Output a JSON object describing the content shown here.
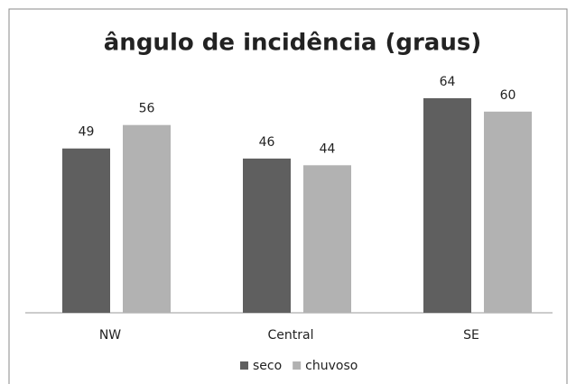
{
  "chart_data": {
    "type": "bar",
    "title": "ângulo de incidência (graus)",
    "categories": [
      "NW",
      "Central",
      "SE"
    ],
    "series": [
      {
        "name": "seco",
        "color": "#5f5f5f",
        "values": [
          49,
          46,
          64
        ]
      },
      {
        "name": "chuvoso",
        "color": "#b2b2b2",
        "values": [
          56,
          44,
          60
        ]
      }
    ],
    "legend": "bottom"
  }
}
